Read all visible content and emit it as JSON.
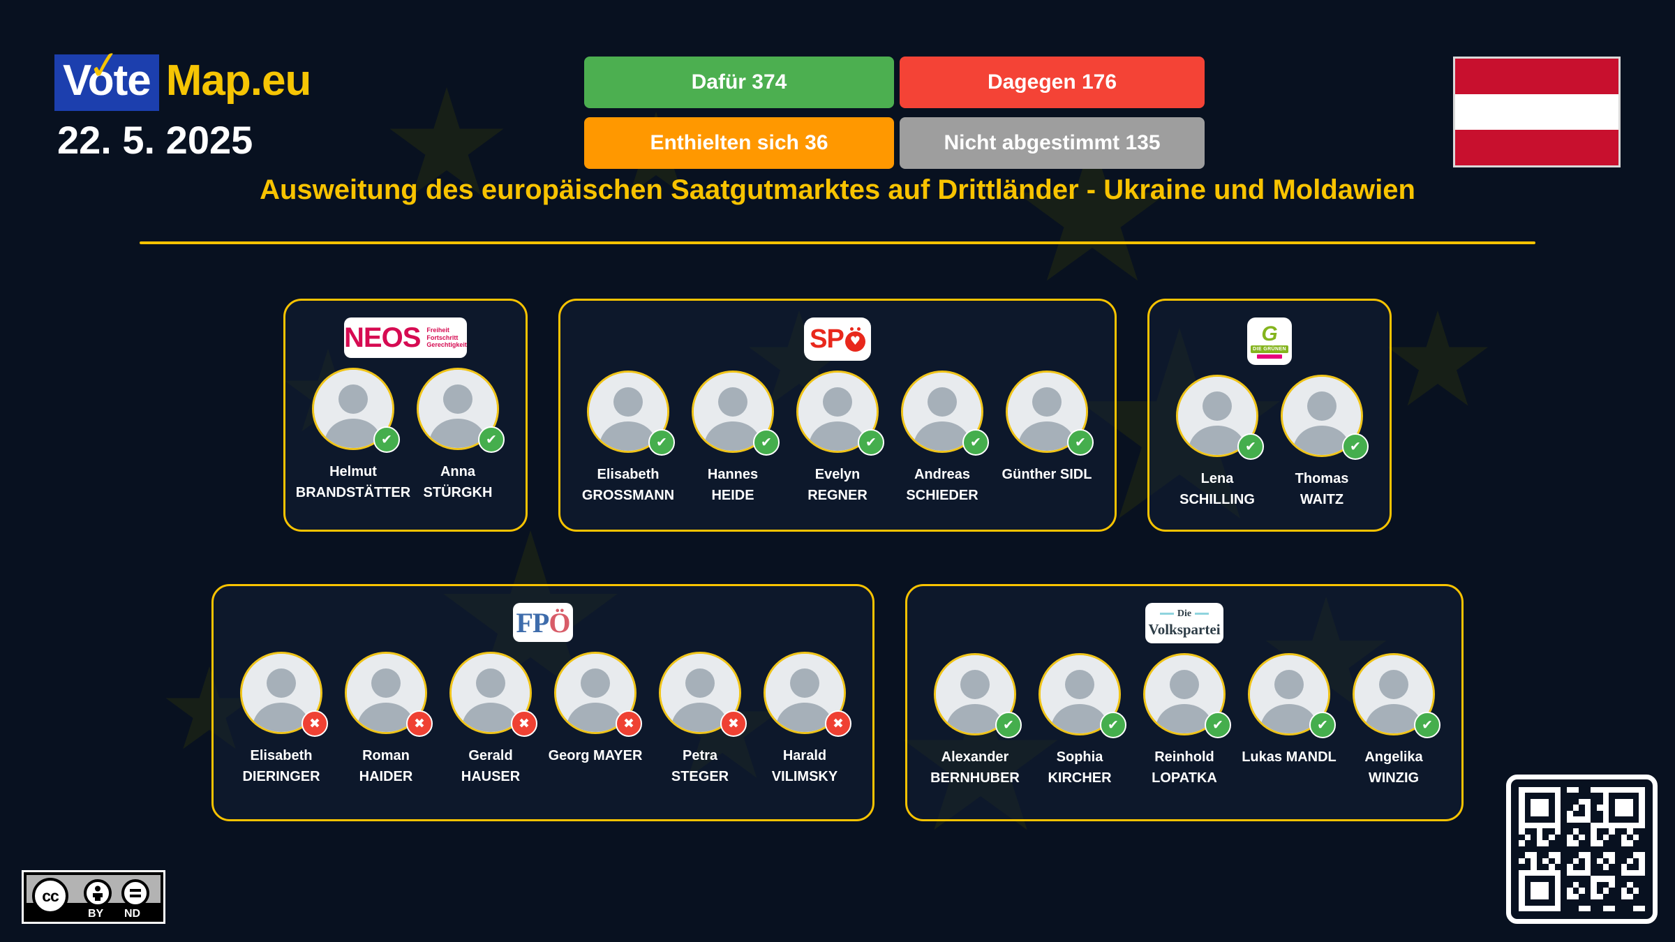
{
  "brand": {
    "vote": "Vote",
    "map": "Map.eu",
    "check_icon": "✓"
  },
  "date": "22. 5. 2025",
  "results": [
    {
      "label": "Dafür 374",
      "color": "#4caf50"
    },
    {
      "label": "Dagegen 176",
      "color": "#f44336"
    },
    {
      "label": "Enthielten sich 36",
      "color": "#ff9800"
    },
    {
      "label": "Nicht abgestimmt 135",
      "color": "#9e9e9e"
    }
  ],
  "flag": {
    "country": "austria",
    "stripes": [
      "#c8102e",
      "#ffffff",
      "#c8102e"
    ]
  },
  "title": "Ausweitung des europäischen Saatgutmarktes auf Drittländer - Ukraine und Moldawien",
  "vote_icons": {
    "yes": "✔",
    "no": "✖",
    "yes_color": "#45ae4d",
    "no_color": "#ef4133"
  },
  "parties": [
    {
      "id": "neos",
      "row": 1,
      "logo": {
        "type": "neos",
        "text": "NEOS",
        "tagline": [
          "Freiheit",
          "Fortschritt",
          "Gerechtigkeit"
        ],
        "color": "#d60b52"
      },
      "members": [
        {
          "line1": "Helmut",
          "line2": "BRANDSTÄTTER",
          "vote": "yes"
        },
        {
          "line1": "Anna",
          "line2": "STÜRGKH",
          "vote": "yes"
        }
      ]
    },
    {
      "id": "spoe",
      "row": 1,
      "logo": {
        "type": "spoe",
        "text": "SPÖ",
        "heart": "♥",
        "color": "#e8281c"
      },
      "members": [
        {
          "line1": "Elisabeth",
          "line2": "GROSSMANN",
          "vote": "yes"
        },
        {
          "line1": "Hannes",
          "line2": "HEIDE",
          "vote": "yes"
        },
        {
          "line1": "Evelyn",
          "line2": "REGNER",
          "vote": "yes"
        },
        {
          "line1": "Andreas",
          "line2": "SCHIEDER",
          "vote": "yes"
        },
        {
          "line1": "Günther SIDL",
          "line2": "",
          "vote": "yes"
        }
      ]
    },
    {
      "id": "gruene",
      "row": 1,
      "logo": {
        "type": "gruene",
        "g": "G",
        "banner": "DIE GRÜNEN",
        "color": "#84b41e"
      },
      "members": [
        {
          "line1": "Lena",
          "line2": "SCHILLING",
          "vote": "yes"
        },
        {
          "line1": "Thomas",
          "line2": "WAITZ",
          "vote": "yes"
        }
      ]
    },
    {
      "id": "fpoe",
      "row": 2,
      "logo": {
        "type": "fpoe",
        "text": "FPÖ",
        "color_fp": "#3e6cab",
        "color_o": "#d85c68"
      },
      "members": [
        {
          "line1": "Elisabeth",
          "line2": "DIERINGER",
          "vote": "no"
        },
        {
          "line1": "Roman",
          "line2": "HAIDER",
          "vote": "no"
        },
        {
          "line1": "Gerald",
          "line2": "HAUSER",
          "vote": "no"
        },
        {
          "line1": "Georg MAYER",
          "line2": "",
          "vote": "no"
        },
        {
          "line1": "Petra",
          "line2": "STEGER",
          "vote": "no"
        },
        {
          "line1": "Harald",
          "line2": "VILIMSKY",
          "vote": "no"
        }
      ]
    },
    {
      "id": "oevp",
      "row": 2,
      "logo": {
        "type": "oevp",
        "text_top": "Die",
        "text_main": "Volkspartei",
        "accent": "#8fd4de"
      },
      "members": [
        {
          "line1": "Alexander",
          "line2": "BERNHUBER",
          "vote": "yes"
        },
        {
          "line1": "Sophia",
          "line2": "KIRCHER",
          "vote": "yes"
        },
        {
          "line1": "Reinhold",
          "line2": "LOPATKA",
          "vote": "yes"
        },
        {
          "line1": "Lukas MANDL",
          "line2": "",
          "vote": "yes"
        },
        {
          "line1": "Angelika",
          "line2": "WINZIG",
          "vote": "yes"
        }
      ]
    }
  ],
  "license": {
    "cc": "cc",
    "by": "BY",
    "nd": "ND"
  }
}
